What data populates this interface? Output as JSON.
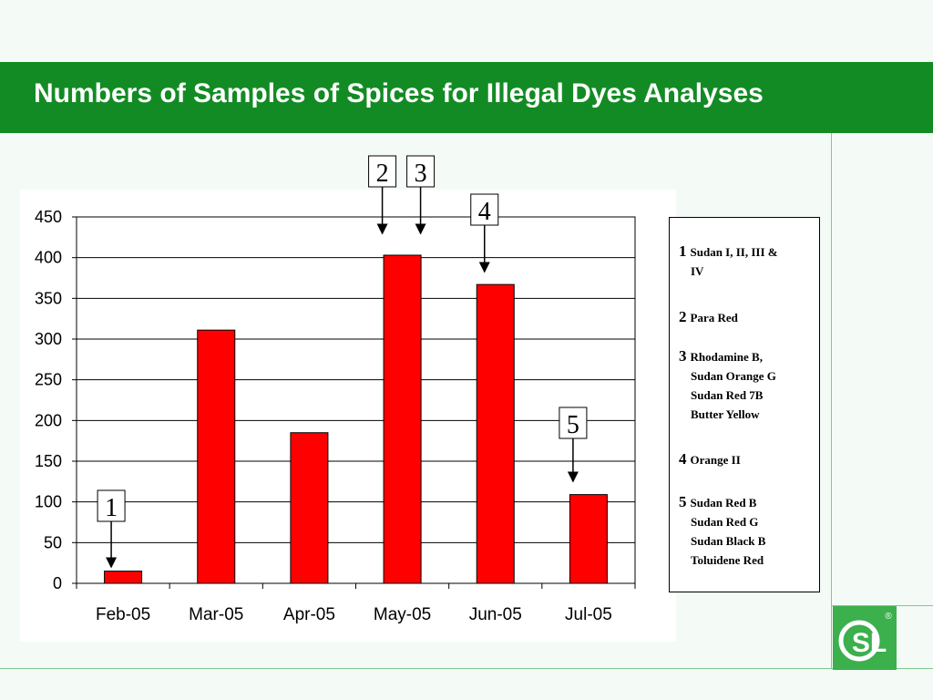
{
  "page": {
    "title": "Numbers of Samples of Spices for Illegal Dyes Analyses"
  },
  "colors": {
    "header": "#138b24",
    "bar": "#ff0000",
    "background": "#f4fbf6",
    "logo": "#3bb04c"
  },
  "legend": [
    {
      "number": "1",
      "names": [
        "Sudan I, II, III &",
        "IV"
      ]
    },
    {
      "number": "2",
      "names": [
        "Para Red"
      ]
    },
    {
      "number": "3",
      "names": [
        "Rhodamine B,",
        "Sudan Orange G",
        "Sudan Red 7B",
        "Butter Yellow"
      ]
    },
    {
      "number": "4",
      "names": [
        "Orange II"
      ]
    },
    {
      "number": "5",
      "names": [
        "Sudan Red B",
        "Sudan Red G",
        "Sudan Black B",
        "Toluidene Red"
      ]
    }
  ],
  "logo": {
    "text": "SL",
    "mark": "®",
    "icon": "csl-logo-icon"
  },
  "chart_data": {
    "type": "bar",
    "title": "",
    "xlabel": "",
    "ylabel": "",
    "categories": [
      "Feb-05",
      "Mar-05",
      "Apr-05",
      "May-05",
      "Jun-05",
      "Jul-05"
    ],
    "values": [
      15,
      311,
      185,
      403,
      367,
      109
    ],
    "ylim": [
      0,
      450
    ],
    "yticks": [
      "0",
      "50",
      "100",
      "150",
      "200",
      "250",
      "300",
      "350",
      "400",
      "450"
    ],
    "grid": true,
    "annotations": [
      {
        "label": "1",
        "category": "Feb-05"
      },
      {
        "label": "2",
        "category": "May-05"
      },
      {
        "label": "3",
        "category": "May-05"
      },
      {
        "label": "4",
        "category": "Jun-05"
      },
      {
        "label": "5",
        "category": "Jul-05"
      }
    ]
  }
}
